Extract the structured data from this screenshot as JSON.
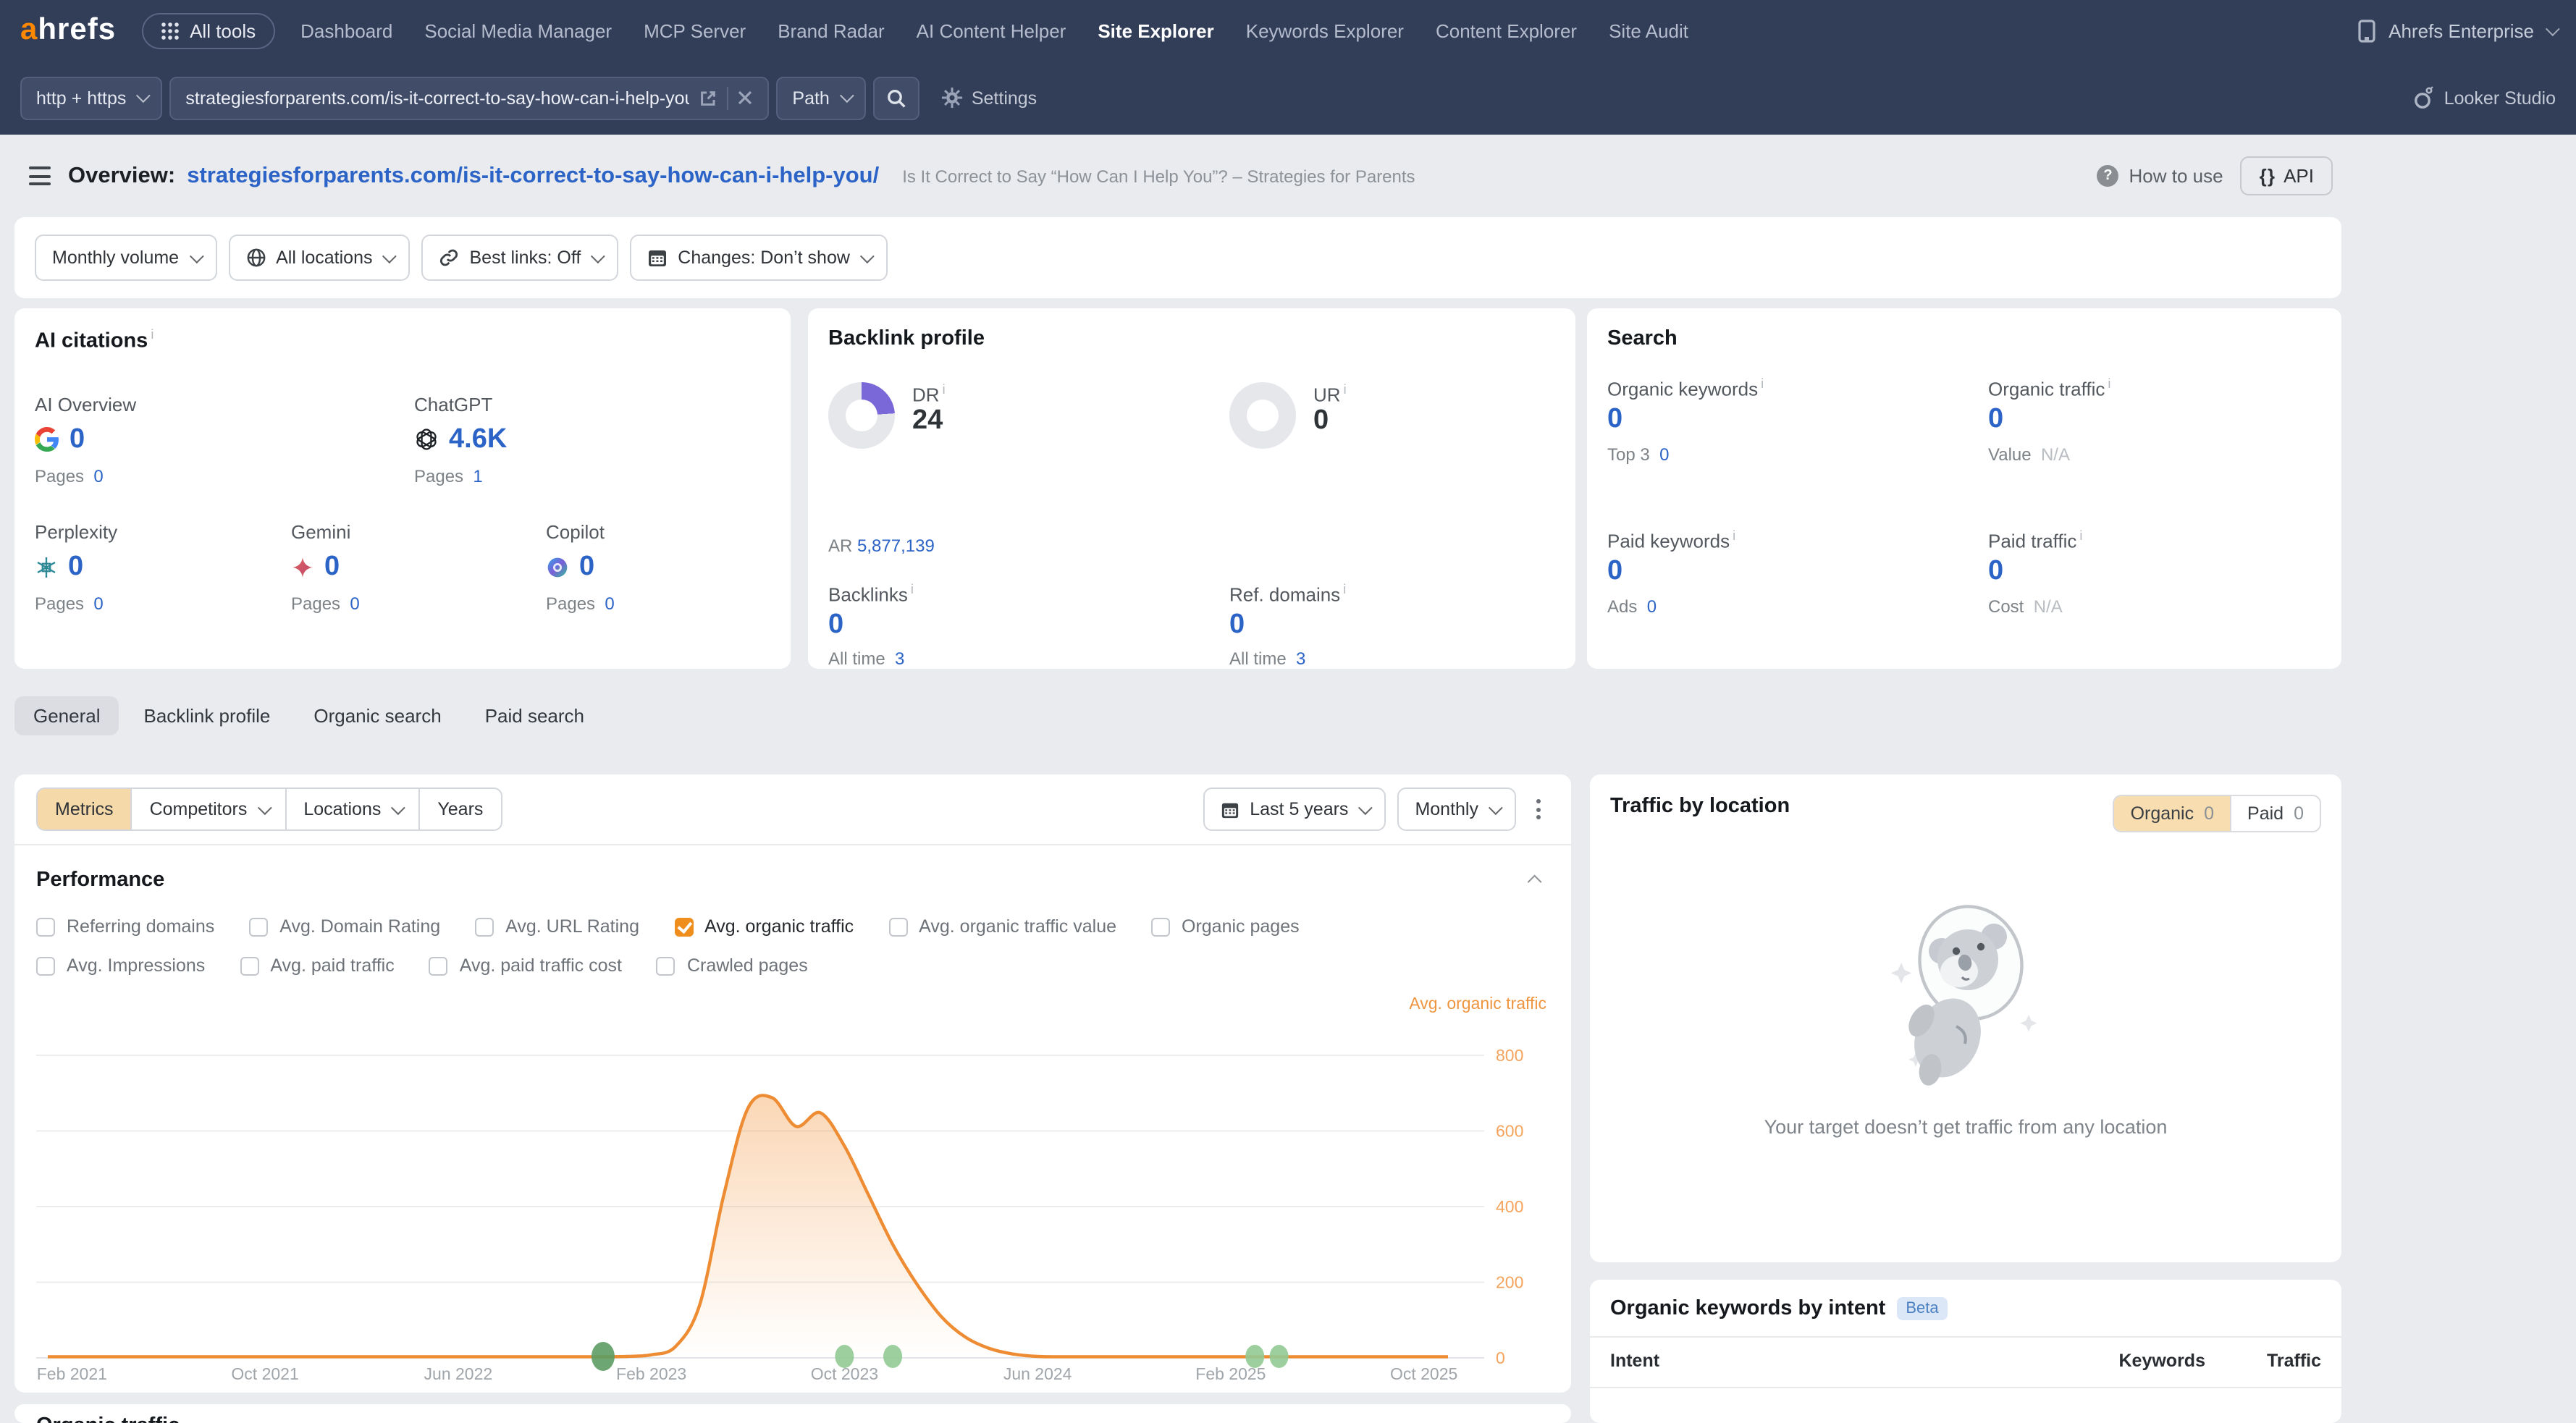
{
  "nav": {
    "logo": "ahrefs",
    "all_tools": "All tools",
    "items": [
      {
        "label": "Dashboard",
        "active": false
      },
      {
        "label": "Social Media Manager",
        "active": false
      },
      {
        "label": "MCP Server",
        "active": false
      },
      {
        "label": "Brand Radar",
        "active": false
      },
      {
        "label": "AI Content Helper",
        "active": false
      },
      {
        "label": "Site Explorer",
        "active": true
      },
      {
        "label": "Keywords Explorer",
        "active": false
      },
      {
        "label": "Content Explorer",
        "active": false
      },
      {
        "label": "Site Audit",
        "active": false
      }
    ],
    "account": "Ahrefs Enterprise"
  },
  "searchbar": {
    "protocol": "http + https",
    "url": "strategiesforparents.com/is-it-correct-to-say-how-can-i-help-you",
    "mode": "Path",
    "settings_label": "Settings",
    "looker_label": "Looker Studio"
  },
  "header": {
    "overview_label": "Overview:",
    "target_url": "strategiesforparents.com/is-it-correct-to-say-how-can-i-help-you/",
    "page_title": "Is It Correct to Say “How Can I Help You”? – Strategies for Parents",
    "how_to_use": "How to use",
    "api_label": "API"
  },
  "filters": [
    {
      "label": "Monthly volume",
      "icon": "none"
    },
    {
      "label": "All locations",
      "icon": "globe"
    },
    {
      "label": "Best links: Off",
      "icon": "link"
    },
    {
      "label": "Changes: Don’t show",
      "icon": "calendar"
    }
  ],
  "ai_citations": {
    "title": "AI citations",
    "pages_label": "Pages",
    "cards": [
      {
        "name": "AI Overview",
        "icon": "google-icon",
        "value": "0",
        "pages": "0"
      },
      {
        "name": "ChatGPT",
        "icon": "openai-icon",
        "value": "4.6K",
        "pages": "1"
      },
      {
        "name": "Perplexity",
        "icon": "perplexity-icon",
        "value": "0",
        "pages": "0"
      },
      {
        "name": "Gemini",
        "icon": "gemini-icon",
        "value": "0",
        "pages": "0"
      },
      {
        "name": "Copilot",
        "icon": "copilot-icon",
        "value": "0",
        "pages": "0"
      }
    ]
  },
  "backlink_profile": {
    "title": "Backlink profile",
    "dr_label": "DR",
    "dr_value": "24",
    "dr_percent": 24,
    "ar_label": "AR",
    "ar_value": "5,877,139",
    "ur_label": "UR",
    "ur_value": "0",
    "ur_percent": 0,
    "backlinks_label": "Backlinks",
    "backlinks_value": "0",
    "all_time_label": "All time",
    "backlinks_all_time": "3",
    "ref_domains_label": "Ref. domains",
    "ref_domains_value": "0",
    "ref_domains_all_time": "3"
  },
  "search_panel": {
    "title": "Search",
    "organic_keywords_label": "Organic keywords",
    "organic_keywords_value": "0",
    "top3_label": "Top 3",
    "top3_value": "0",
    "organic_traffic_label": "Organic traffic",
    "organic_traffic_value": "0",
    "value_label": "Value",
    "value_value": "N/A",
    "paid_keywords_label": "Paid keywords",
    "paid_keywords_value": "0",
    "ads_label": "Ads",
    "ads_value": "0",
    "paid_traffic_label": "Paid traffic",
    "paid_traffic_value": "0",
    "cost_label": "Cost",
    "cost_value": "N/A"
  },
  "tabs": [
    {
      "label": "General",
      "active": true
    },
    {
      "label": "Backlink profile",
      "active": false
    },
    {
      "label": "Organic search",
      "active": false
    },
    {
      "label": "Paid search",
      "active": false
    }
  ],
  "toolbar": {
    "segments": [
      {
        "label": "Metrics",
        "active": true,
        "caret": false
      },
      {
        "label": "Competitors",
        "active": false,
        "caret": true
      },
      {
        "label": "Locations",
        "active": false,
        "caret": true
      },
      {
        "label": "Years",
        "active": false,
        "caret": false
      }
    ],
    "range_label": "Last 5 years",
    "granularity_label": "Monthly"
  },
  "performance": {
    "title": "Performance",
    "rows": [
      [
        {
          "label": "Referring domains",
          "checked": false
        },
        {
          "label": "Avg. Domain Rating",
          "checked": false
        },
        {
          "label": "Avg. URL Rating",
          "checked": false
        },
        {
          "label": "Avg. organic traffic",
          "checked": true
        },
        {
          "label": "Avg. organic traffic value",
          "checked": false
        },
        {
          "label": "Organic pages",
          "checked": false
        }
      ],
      [
        {
          "label": "Avg. Impressions",
          "checked": false
        },
        {
          "label": "Avg. paid traffic",
          "checked": false
        },
        {
          "label": "Avg. paid traffic cost",
          "checked": false
        },
        {
          "label": "Crawled pages",
          "checked": false
        }
      ]
    ]
  },
  "chart_data": {
    "type": "area",
    "title": "Performance",
    "series_label": "Avg. organic traffic",
    "x_start": "Jan 2021",
    "frequency": "monthly",
    "x_tick_labels": [
      "Feb 2021",
      "Oct 2021",
      "Jun 2022",
      "Feb 2023",
      "Oct 2023",
      "Jun 2024",
      "Feb 2025",
      "Oct 2025"
    ],
    "x_tick_month_index": [
      1,
      9,
      17,
      25,
      33,
      41,
      49,
      57
    ],
    "y_ticks": [
      0,
      200,
      400,
      600,
      800
    ],
    "ylim": [
      0,
      860
    ],
    "grid": true,
    "y_axis_position": "right",
    "line_color": "#ee8c33",
    "values": [
      3,
      3,
      3,
      3,
      3,
      3,
      3,
      3,
      3,
      3,
      3,
      3,
      3,
      3,
      3,
      3,
      3,
      3,
      3,
      3,
      3,
      3,
      3,
      3,
      4,
      8,
      30,
      140,
      430,
      660,
      688,
      612,
      648,
      560,
      430,
      300,
      195,
      110,
      55,
      25,
      10,
      4,
      3,
      3,
      3,
      3,
      3,
      3,
      3,
      3,
      3,
      3,
      3,
      3,
      3,
      3,
      3,
      3,
      3
    ],
    "markers": [
      {
        "month_index": 23,
        "date": "Dec 2022",
        "style": "dark-green"
      },
      {
        "month_index": 33,
        "date": "Oct 2023",
        "style": "light-green"
      },
      {
        "month_index": 35,
        "date": "Dec 2023",
        "style": "light-green"
      },
      {
        "month_index": 50,
        "date": "Mar 2025",
        "style": "light-green"
      },
      {
        "month_index": 51,
        "date": "Apr 2025",
        "style": "light-green"
      }
    ]
  },
  "traffic_by_location": {
    "title": "Traffic by location",
    "toggle": [
      {
        "label": "Organic",
        "count": "0",
        "active": true
      },
      {
        "label": "Paid",
        "count": "0",
        "active": false
      }
    ],
    "empty_text": "Your target doesn’t get traffic from any location"
  },
  "keywords_by_intent": {
    "title": "Organic keywords by intent",
    "badge": "Beta",
    "columns": [
      "Intent",
      "Keywords",
      "Traffic"
    ]
  },
  "partial_section": {
    "title": "Organic traffic"
  },
  "colors": {
    "accent_orange": "#ff8800",
    "link_blue": "#2b63c6",
    "dr_purple": "#7b68d8",
    "marker_dark_green": "#5d9c63",
    "marker_light_green": "#92ca93",
    "nav_bg": "#323d58"
  }
}
